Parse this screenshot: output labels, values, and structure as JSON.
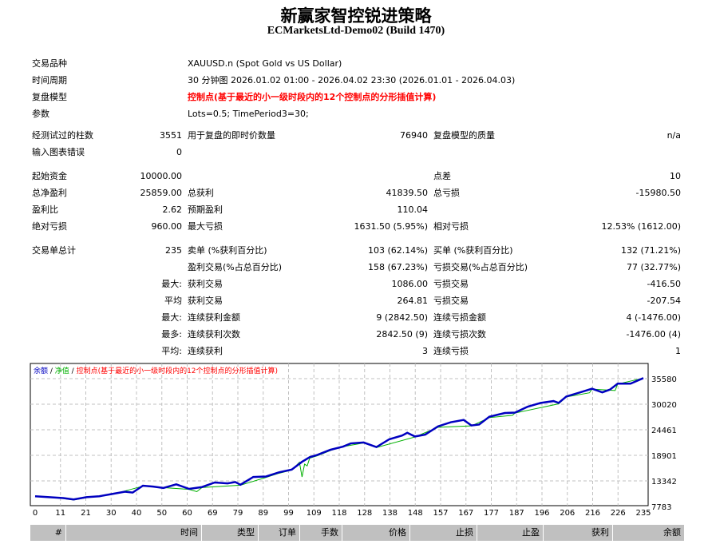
{
  "header": {
    "title": "新赢家智控锐进策略",
    "subtitle": "ECMarketsLtd-Demo02 (Build 1470)"
  },
  "info": [
    {
      "label": "交易品种",
      "value": "XAUUSD.n (Spot Gold vs US Dollar)"
    },
    {
      "label": "时间周期",
      "value": "30 分钟图 2026.01.02 01:00 - 2026.04.02 23:30 (2026.01.01 - 2026.04.03)"
    },
    {
      "label": "复盘模型",
      "value": "控制点(基于最近的小一级时段内的12个控制点的分形插值计算)"
    },
    {
      "label": "参数",
      "value": "Lots=0.5; TimePeriod3=30;"
    }
  ],
  "stats": [
    {
      "l1": "经测试过的柱数",
      "v1": "3551",
      "l2": "用于复盘的即时价数量",
      "v2": "76940",
      "l3": "复盘模型的质量",
      "v3": "n/a"
    },
    {
      "l1": "输入图表错误",
      "v1": "0",
      "l2": "",
      "v2": "",
      "l3": "",
      "v3": ""
    },
    {
      "l1": "起始资金",
      "v1": "10000.00",
      "l2": "",
      "v2": "",
      "l3": "点差",
      "v3": "10"
    },
    {
      "l1": "总净盈利",
      "v1": "25859.00",
      "l2": "总获利",
      "v2": "41839.50",
      "l3": "总亏损",
      "v3": "-15980.50"
    },
    {
      "l1": "盈利比",
      "v1": "2.62",
      "l2": "预期盈利",
      "v2": "110.04",
      "l3": "",
      "v3": ""
    },
    {
      "l1": "绝对亏损",
      "v1": "960.00",
      "l2": "最大亏损",
      "v2": "1631.50 (5.95%)",
      "l3": "相对亏损",
      "v3": "12.53% (1612.00)"
    },
    {
      "l1": "交易单总计",
      "v1": "235",
      "l2": "卖单 (%获利百分比)",
      "v2": "103 (62.14%)",
      "l3": "买单 (%获利百分比)",
      "v3": "132 (71.21%)"
    },
    {
      "l1": "",
      "v1": "",
      "l2": "盈利交易(%占总百分比)",
      "v2": "158 (67.23%)",
      "l3": "亏损交易(%占总百分比)",
      "v3": "77 (32.77%)"
    },
    {
      "l1": "",
      "v1": "最大:",
      "l2": "获利交易",
      "v2": "1086.00",
      "l3": "亏损交易",
      "v3": "-416.50"
    },
    {
      "l1": "",
      "v1": "平均",
      "l2": "获利交易",
      "v2": "264.81",
      "l3": "亏损交易",
      "v3": "-207.54"
    },
    {
      "l1": "",
      "v1": "最大:",
      "l2": "连续获利金额",
      "v2": "9 (2842.50)",
      "l3": "连续亏损金额",
      "v3": "4 (-1476.00)"
    },
    {
      "l1": "",
      "v1": "最多:",
      "l2": "连续获利次数",
      "v2": "2842.50 (9)",
      "l3": "连续亏损次数",
      "v3": "-1476.00 (4)"
    },
    {
      "l1": "",
      "v1": "平均:",
      "l2": "连续获利",
      "v2": "3",
      "l3": "连续亏损",
      "v3": "1"
    }
  ],
  "chart_data": {
    "type": "line",
    "legend": [
      {
        "text": "余额",
        "color": "#0000c0"
      },
      {
        "text": "净值",
        "color": "#00b000"
      },
      {
        "text": "控制点(基于最近的小一级时段内的12个控制点的分形插值计算)",
        "color": "#ff0000"
      }
    ],
    "legend_position": "top-left",
    "grid": true,
    "xlim": [
      0,
      237
    ],
    "ylim": [
      7783,
      35580
    ],
    "x_ticks": [
      "0",
      "11",
      "21",
      "30",
      "40",
      "50",
      "60",
      "69",
      "79",
      "89",
      "99",
      "109",
      "118",
      "128",
      "138",
      "148",
      "157",
      "167",
      "177",
      "187",
      "196",
      "206",
      "216",
      "226",
      "235"
    ],
    "y_ticks": [
      "35580",
      "30020",
      "24461",
      "18901",
      "13342",
      "7783"
    ],
    "series": [
      {
        "name": "余额",
        "color": "#0000c0",
        "points": [
          [
            0,
            10000
          ],
          [
            11,
            9600
          ],
          [
            15,
            9300
          ],
          [
            20,
            9800
          ],
          [
            25,
            10000
          ],
          [
            30,
            10500
          ],
          [
            35,
            11000
          ],
          [
            38,
            10800
          ],
          [
            42,
            12300
          ],
          [
            46,
            12100
          ],
          [
            50,
            11800
          ],
          [
            55,
            12600
          ],
          [
            60,
            11600
          ],
          [
            65,
            12000
          ],
          [
            70,
            13000
          ],
          [
            75,
            12800
          ],
          [
            78,
            13100
          ],
          [
            80,
            12500
          ],
          [
            85,
            14200
          ],
          [
            90,
            14300
          ],
          [
            95,
            15200
          ],
          [
            100,
            15800
          ],
          [
            104,
            17500
          ],
          [
            107,
            18500
          ],
          [
            110,
            19000
          ],
          [
            115,
            20100
          ],
          [
            120,
            20800
          ],
          [
            123,
            21500
          ],
          [
            128,
            21700
          ],
          [
            133,
            20700
          ],
          [
            138,
            22400
          ],
          [
            143,
            23200
          ],
          [
            145,
            23800
          ],
          [
            148,
            23000
          ],
          [
            152,
            23400
          ],
          [
            157,
            25200
          ],
          [
            162,
            26100
          ],
          [
            167,
            26600
          ],
          [
            170,
            25400
          ],
          [
            173,
            25600
          ],
          [
            177,
            27300
          ],
          [
            183,
            28100
          ],
          [
            187,
            28200
          ],
          [
            192,
            29500
          ],
          [
            197,
            30300
          ],
          [
            202,
            30700
          ],
          [
            204,
            30300
          ],
          [
            207,
            31700
          ],
          [
            213,
            32700
          ],
          [
            217,
            33400
          ],
          [
            221,
            32600
          ],
          [
            224,
            33200
          ],
          [
            227,
            34500
          ],
          [
            232,
            34500
          ],
          [
            237,
            35700
          ]
        ]
      },
      {
        "name": "净值",
        "color": "#00b000",
        "points": [
          [
            0,
            10000
          ],
          [
            11,
            9500
          ],
          [
            15,
            9200
          ],
          [
            20,
            9700
          ],
          [
            30,
            10400
          ],
          [
            42,
            12200
          ],
          [
            60,
            11500
          ],
          [
            63,
            11000
          ],
          [
            65,
            11900
          ],
          [
            80,
            12400
          ],
          [
            90,
            14100
          ],
          [
            95,
            15000
          ],
          [
            100,
            15700
          ],
          [
            103,
            17400
          ],
          [
            104,
            14200
          ],
          [
            105,
            17000
          ],
          [
            106,
            16600
          ],
          [
            107,
            18300
          ],
          [
            110,
            18800
          ],
          [
            118,
            20600
          ],
          [
            128,
            21600
          ],
          [
            133,
            20600
          ],
          [
            148,
            22900
          ],
          [
            157,
            25000
          ],
          [
            170,
            25300
          ],
          [
            177,
            27100
          ],
          [
            186,
            27600
          ],
          [
            187,
            28100
          ],
          [
            204,
            30100
          ],
          [
            207,
            31600
          ],
          [
            216,
            32500
          ],
          [
            217,
            33300
          ],
          [
            226,
            33000
          ],
          [
            227,
            34400
          ],
          [
            237,
            35700
          ]
        ]
      }
    ]
  },
  "table": {
    "headers": [
      "#",
      "时间",
      "类型",
      "订单",
      "手数",
      "价格",
      "止损",
      "止盈",
      "获利",
      "余额"
    ]
  }
}
